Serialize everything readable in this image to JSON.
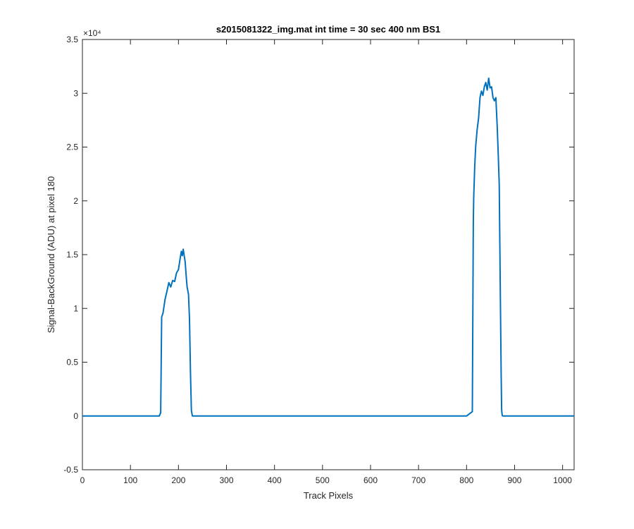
{
  "chart_data": {
    "type": "line",
    "title": "s2015081322_img.mat int time = 30 sec  400 nm BS1",
    "xlabel": "Track Pixels",
    "ylabel": "Signal-BackGround (ADU) at pixel 180",
    "y_multiplier_label": "×10⁴",
    "xlim": [
      0,
      1024
    ],
    "ylim": [
      -5000,
      35000
    ],
    "xticks": [
      0,
      100,
      200,
      300,
      400,
      500,
      600,
      700,
      800,
      900,
      1000
    ],
    "yticks": [
      -5000,
      0,
      5000,
      10000,
      15000,
      20000,
      25000,
      30000,
      35000
    ],
    "yticklabels": [
      "-0.5",
      "0",
      "0.5",
      "1",
      "1.5",
      "2",
      "2.5",
      "3",
      "3.5"
    ],
    "grid": false,
    "series_color": "#0072BD",
    "series": [
      {
        "x": [
          0,
          100,
          160,
          163,
          165,
          168,
          172,
          176,
          180,
          184,
          188,
          192,
          196,
          200,
          204,
          206,
          208,
          210,
          212,
          214,
          216,
          218,
          221,
          223,
          225,
          227,
          229,
          300,
          400,
          500,
          600,
          700,
          800,
          812,
          814,
          815,
          817,
          819,
          822,
          825,
          828,
          831,
          834,
          837,
          840,
          843,
          846,
          849,
          852,
          855,
          858,
          861,
          864,
          866,
          868,
          870,
          872,
          873,
          874,
          875,
          876,
          878,
          900,
          1000,
          1024
        ],
        "y": [
          0,
          0,
          0,
          300,
          9200,
          9600,
          10800,
          11600,
          12400,
          12000,
          12600,
          12500,
          13300,
          13600,
          14800,
          15300,
          14900,
          15500,
          14900,
          14300,
          13100,
          12000,
          11300,
          9000,
          4000,
          500,
          0,
          0,
          0,
          0,
          0,
          0,
          0,
          400,
          18000,
          20400,
          23200,
          25100,
          26600,
          27700,
          29600,
          30200,
          29800,
          30600,
          31000,
          30300,
          31400,
          30500,
          30600,
          29600,
          29300,
          29600,
          26800,
          24300,
          21500,
          13000,
          4000,
          600,
          100,
          0,
          0,
          0,
          0,
          0,
          0
        ]
      }
    ]
  }
}
